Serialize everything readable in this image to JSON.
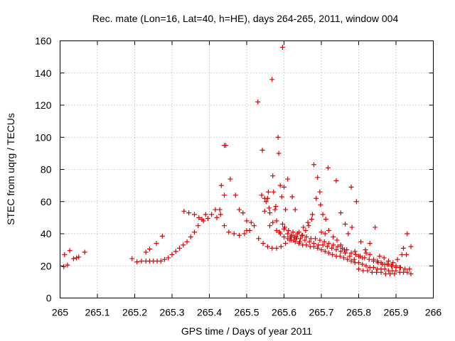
{
  "chart_data": {
    "type": "scatter",
    "title": "Rec. mate (Lon=16, Lat=40, h=HE), days 264-265, 2011, window 004",
    "xlabel": "GPS time / Days of year 2011",
    "ylabel": "STEC from uqrg / TECUs",
    "xlim": [
      265,
      266
    ],
    "ylim": [
      0,
      160
    ],
    "xticks": [
      "265",
      "265.1",
      "265.2",
      "265.3",
      "265.4",
      "265.5",
      "265.6",
      "265.7",
      "265.8",
      "265.9",
      "266"
    ],
    "yticks": [
      "0",
      "20",
      "40",
      "60",
      "80",
      "100",
      "120",
      "140",
      "160"
    ],
    "grid": true,
    "marker": "+",
    "color": "#dd0000",
    "points": [
      [
        265.01,
        19.5
      ],
      [
        265.012,
        27
      ],
      [
        265.02,
        20.5
      ],
      [
        265.026,
        29.5
      ],
      [
        265.036,
        24.5
      ],
      [
        265.044,
        25
      ],
      [
        265.05,
        25.5
      ],
      [
        265.066,
        28.5
      ],
      [
        265.193,
        24.5
      ],
      [
        265.206,
        22.5
      ],
      [
        265.218,
        23
      ],
      [
        265.23,
        23
      ],
      [
        265.24,
        23
      ],
      [
        265.25,
        23
      ],
      [
        265.26,
        23
      ],
      [
        265.27,
        23
      ],
      [
        265.28,
        24
      ],
      [
        265.29,
        25
      ],
      [
        265.3,
        27
      ],
      [
        265.31,
        29
      ],
      [
        265.32,
        31
      ],
      [
        265.33,
        33
      ],
      [
        265.34,
        35
      ],
      [
        265.35,
        38
      ],
      [
        265.36,
        41
      ],
      [
        265.37,
        45
      ],
      [
        265.38,
        49
      ],
      [
        265.39,
        52
      ],
      [
        265.23,
        28.5
      ],
      [
        265.24,
        30.5
      ],
      [
        265.258,
        34
      ],
      [
        265.274,
        38.5
      ],
      [
        265.332,
        54
      ],
      [
        265.345,
        53
      ],
      [
        265.36,
        52
      ],
      [
        265.372,
        50
      ],
      [
        265.384,
        48
      ],
      [
        265.396,
        49.5
      ],
      [
        265.406,
        52
      ],
      [
        265.416,
        55
      ],
      [
        265.428,
        55
      ],
      [
        265.44,
        64
      ],
      [
        265.42,
        50
      ],
      [
        265.432,
        70
      ],
      [
        265.44,
        95
      ],
      [
        265.444,
        95
      ],
      [
        265.456,
        74
      ],
      [
        265.47,
        64
      ],
      [
        265.48,
        55
      ],
      [
        265.43,
        52
      ],
      [
        265.44,
        45
      ],
      [
        265.452,
        41
      ],
      [
        265.466,
        40
      ],
      [
        265.48,
        39
      ],
      [
        265.494,
        40
      ],
      [
        265.508,
        42
      ],
      [
        265.52,
        45
      ],
      [
        265.532,
        37
      ],
      [
        265.544,
        34
      ],
      [
        265.556,
        32
      ],
      [
        265.568,
        31
      ],
      [
        265.58,
        31
      ],
      [
        265.592,
        32
      ],
      [
        265.604,
        34
      ],
      [
        265.616,
        36
      ],
      [
        265.628,
        38
      ],
      [
        265.64,
        41
      ],
      [
        265.652,
        44
      ],
      [
        265.664,
        47
      ],
      [
        265.676,
        52
      ],
      [
        265.686,
        62
      ],
      [
        265.696,
        66
      ],
      [
        265.5,
        42
      ],
      [
        265.512,
        47
      ],
      [
        265.53,
        122
      ],
      [
        265.542,
        92
      ],
      [
        265.548,
        62
      ],
      [
        265.548,
        54
      ],
      [
        265.558,
        66
      ],
      [
        265.56,
        56
      ],
      [
        265.562,
        53
      ],
      [
        265.568,
        136
      ],
      [
        265.57,
        76
      ],
      [
        265.572,
        66
      ],
      [
        265.576,
        55
      ],
      [
        265.58,
        48
      ],
      [
        265.584,
        100
      ],
      [
        265.586,
        90
      ],
      [
        265.59,
        70
      ],
      [
        265.594,
        63
      ],
      [
        265.596,
        156
      ],
      [
        265.6,
        69
      ],
      [
        265.604,
        55
      ],
      [
        265.61,
        74
      ],
      [
        265.622,
        63
      ],
      [
        265.63,
        55
      ],
      [
        265.49,
        53
      ],
      [
        265.5,
        48
      ],
      [
        265.54,
        64
      ],
      [
        265.552,
        60
      ],
      [
        265.556,
        62
      ],
      [
        265.562,
        45
      ],
      [
        265.57,
        47
      ],
      [
        265.578,
        57
      ],
      [
        265.58,
        42
      ],
      [
        265.588,
        41
      ],
      [
        265.596,
        46
      ],
      [
        265.602,
        44
      ],
      [
        265.61,
        40
      ],
      [
        265.618,
        38
      ],
      [
        265.626,
        36
      ],
      [
        265.634,
        37
      ],
      [
        265.642,
        35
      ],
      [
        265.65,
        39
      ],
      [
        265.658,
        42
      ],
      [
        265.666,
        45
      ],
      [
        265.674,
        49
      ],
      [
        265.68,
        83
      ],
      [
        265.69,
        75
      ],
      [
        265.698,
        58
      ],
      [
        265.704,
        52
      ],
      [
        265.712,
        49
      ],
      [
        265.718,
        81
      ],
      [
        265.59,
        40
      ],
      [
        265.6,
        38
      ],
      [
        265.61,
        37
      ],
      [
        265.62,
        36
      ],
      [
        265.63,
        35
      ],
      [
        265.64,
        34
      ],
      [
        265.65,
        33
      ],
      [
        265.66,
        33
      ],
      [
        265.67,
        32
      ],
      [
        265.68,
        32
      ],
      [
        265.69,
        31
      ],
      [
        265.7,
        30
      ],
      [
        265.71,
        29
      ],
      [
        265.72,
        28
      ],
      [
        265.73,
        27
      ],
      [
        265.74,
        26
      ],
      [
        265.75,
        26
      ],
      [
        265.76,
        25
      ],
      [
        265.77,
        24
      ],
      [
        265.78,
        23
      ],
      [
        265.79,
        22
      ],
      [
        265.8,
        22
      ],
      [
        265.81,
        21
      ],
      [
        265.82,
        20
      ],
      [
        265.83,
        19
      ],
      [
        265.84,
        19
      ],
      [
        265.85,
        18
      ],
      [
        265.86,
        18
      ],
      [
        265.87,
        18
      ],
      [
        265.88,
        17
      ],
      [
        265.89,
        17
      ],
      [
        265.9,
        17
      ],
      [
        265.91,
        16
      ],
      [
        265.92,
        16
      ],
      [
        265.93,
        16
      ],
      [
        265.94,
        15
      ],
      [
        265.6,
        43
      ],
      [
        265.612,
        42
      ],
      [
        265.624,
        41
      ],
      [
        265.636,
        40
      ],
      [
        265.648,
        39
      ],
      [
        265.66,
        38
      ],
      [
        265.672,
        37
      ],
      [
        265.684,
        37
      ],
      [
        265.696,
        36
      ],
      [
        265.708,
        35
      ],
      [
        265.72,
        34
      ],
      [
        265.732,
        33
      ],
      [
        265.744,
        32
      ],
      [
        265.756,
        31
      ],
      [
        265.768,
        30
      ],
      [
        265.78,
        28
      ],
      [
        265.792,
        27
      ],
      [
        265.804,
        26
      ],
      [
        265.816,
        25
      ],
      [
        265.828,
        24
      ],
      [
        265.84,
        23
      ],
      [
        265.852,
        22
      ],
      [
        265.864,
        21
      ],
      [
        265.876,
        21
      ],
      [
        265.888,
        20
      ],
      [
        265.9,
        19
      ],
      [
        265.912,
        19
      ],
      [
        265.924,
        18
      ],
      [
        265.936,
        18
      ],
      [
        265.62,
        39
      ],
      [
        265.632,
        38
      ],
      [
        265.644,
        37
      ],
      [
        265.656,
        36
      ],
      [
        265.668,
        35
      ],
      [
        265.68,
        34
      ],
      [
        265.692,
        33
      ],
      [
        265.704,
        33
      ],
      [
        265.716,
        32
      ],
      [
        265.728,
        31
      ],
      [
        265.74,
        30
      ],
      [
        265.752,
        29
      ],
      [
        265.764,
        28
      ],
      [
        265.776,
        26
      ],
      [
        265.788,
        24
      ],
      [
        265.8,
        18
      ],
      [
        265.812,
        17
      ],
      [
        265.824,
        17
      ],
      [
        265.836,
        16
      ],
      [
        265.848,
        16
      ],
      [
        265.86,
        16
      ],
      [
        265.872,
        15
      ],
      [
        265.884,
        15
      ],
      [
        265.896,
        15
      ],
      [
        265.7,
        41
      ],
      [
        265.71,
        40
      ],
      [
        265.72,
        42
      ],
      [
        265.732,
        38
      ],
      [
        265.742,
        36
      ],
      [
        265.752,
        33
      ],
      [
        265.762,
        30
      ],
      [
        265.772,
        40
      ],
      [
        265.782,
        44
      ],
      [
        265.79,
        29
      ],
      [
        265.8,
        26
      ],
      [
        265.81,
        25
      ],
      [
        265.82,
        28
      ],
      [
        265.83,
        34
      ],
      [
        265.84,
        24
      ],
      [
        265.85,
        23
      ],
      [
        265.86,
        22
      ],
      [
        265.87,
        21
      ],
      [
        265.88,
        21
      ],
      [
        265.89,
        20
      ],
      [
        265.9,
        20
      ],
      [
        265.91,
        19
      ],
      [
        265.92,
        31
      ],
      [
        265.93,
        40
      ],
      [
        265.94,
        32
      ],
      [
        265.74,
        73
      ],
      [
        265.752,
        53
      ],
      [
        265.764,
        46
      ],
      [
        265.78,
        69
      ],
      [
        265.794,
        60
      ],
      [
        265.806,
        35
      ],
      [
        265.818,
        30
      ],
      [
        265.83,
        27
      ],
      [
        265.844,
        44
      ],
      [
        265.856,
        26
      ],
      [
        265.868,
        25
      ],
      [
        265.88,
        23
      ],
      [
        265.892,
        22
      ],
      [
        265.904,
        24
      ],
      [
        265.916,
        27
      ],
      [
        265.928,
        27
      ]
    ]
  }
}
